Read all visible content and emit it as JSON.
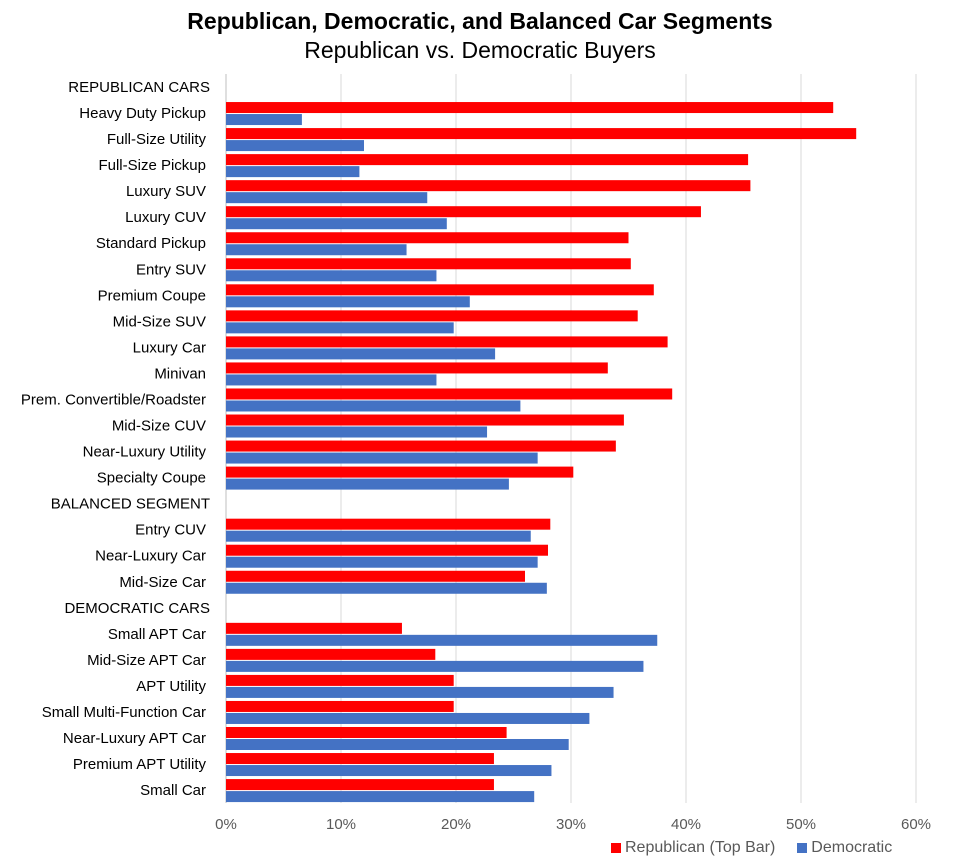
{
  "chart_data": {
    "type": "bar",
    "orientation": "horizontal",
    "title": "Republican, Democratic, and Balanced Car Segments",
    "subtitle": "Republican vs. Democratic Buyers",
    "xlabel": "",
    "ylabel": "",
    "xlim": [
      0,
      60
    ],
    "x_ticks": [
      "0%",
      "10%",
      "20%",
      "30%",
      "40%",
      "50%",
      "60%"
    ],
    "x_tick_values": [
      0,
      10,
      20,
      30,
      40,
      50,
      60
    ],
    "grid": "vertical",
    "legend_position": "bottom-right",
    "colors": {
      "republican": "#ff0000",
      "democratic": "#4472c4"
    },
    "rows": [
      {
        "label": "REPUBLICAN CARS",
        "header": true
      },
      {
        "label": "Heavy Duty Pickup",
        "republican": 52.8,
        "democratic": 6.6
      },
      {
        "label": "Full-Size Utility",
        "republican": 54.8,
        "democratic": 12.0
      },
      {
        "label": "Full-Size Pickup",
        "republican": 45.4,
        "democratic": 11.6
      },
      {
        "label": "Luxury SUV",
        "republican": 45.6,
        "democratic": 17.5
      },
      {
        "label": "Luxury CUV",
        "republican": 41.3,
        "democratic": 19.2
      },
      {
        "label": "Standard Pickup",
        "republican": 35.0,
        "democratic": 15.7
      },
      {
        "label": "Entry SUV",
        "republican": 35.2,
        "democratic": 18.3
      },
      {
        "label": "Premium Coupe",
        "republican": 37.2,
        "democratic": 21.2
      },
      {
        "label": "Mid-Size SUV",
        "republican": 35.8,
        "democratic": 19.8
      },
      {
        "label": "Luxury Car",
        "republican": 38.4,
        "democratic": 23.4
      },
      {
        "label": "Minivan",
        "republican": 33.2,
        "democratic": 18.3
      },
      {
        "label": "Prem. Convertible/Roadster",
        "republican": 38.8,
        "democratic": 25.6
      },
      {
        "label": "Mid-Size CUV",
        "republican": 34.6,
        "democratic": 22.7
      },
      {
        "label": "Near-Luxury Utility",
        "republican": 33.9,
        "democratic": 27.1
      },
      {
        "label": "Specialty Coupe",
        "republican": 30.2,
        "democratic": 24.6
      },
      {
        "label": "BALANCED SEGMENT",
        "header": true
      },
      {
        "label": "Entry CUV",
        "republican": 28.2,
        "democratic": 26.5
      },
      {
        "label": "Near-Luxury Car",
        "republican": 28.0,
        "democratic": 27.1
      },
      {
        "label": "Mid-Size Car",
        "republican": 26.0,
        "democratic": 27.9
      },
      {
        "label": "DEMOCRATIC CARS",
        "header": true
      },
      {
        "label": "Small APT Car",
        "republican": 15.3,
        "democratic": 37.5
      },
      {
        "label": "Mid-Size APT Car",
        "republican": 18.2,
        "democratic": 36.3
      },
      {
        "label": "APT Utility",
        "republican": 19.8,
        "democratic": 33.7
      },
      {
        "label": "Small Multi-Function Car",
        "republican": 19.8,
        "democratic": 31.6
      },
      {
        "label": "Near-Luxury APT Car",
        "republican": 24.4,
        "democratic": 29.8
      },
      {
        "label": "Premium APT Utility",
        "republican": 23.3,
        "democratic": 28.3
      },
      {
        "label": "Small Car",
        "republican": 23.3,
        "democratic": 26.8
      }
    ],
    "series": [
      {
        "name": "Republican (Top Bar)",
        "key": "republican"
      },
      {
        "name": "Democratic",
        "key": "democratic"
      }
    ]
  }
}
